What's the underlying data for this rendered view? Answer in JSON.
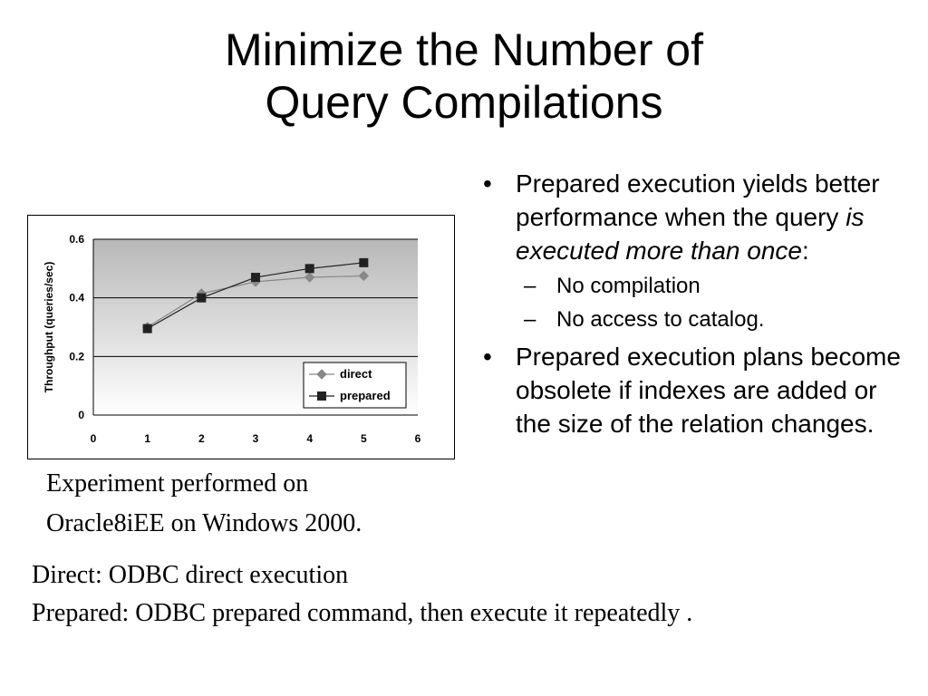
{
  "slide": {
    "title_line1": "Minimize the Number of",
    "title_line2": "Query Compilations"
  },
  "bullets": [
    {
      "parts": [
        "Prepared execution yields better performance when the query ",
        "is executed more than once",
        ":"
      ],
      "sub": [
        "No compilation",
        "No access to catalog."
      ]
    },
    {
      "parts": [
        "Prepared execution plans become obsolete if indexes are added or the size of the relation changes.",
        "",
        ""
      ],
      "sub": []
    }
  ],
  "caption": {
    "line1": "Experiment performed on",
    "line2": "Oracle8iEE on Windows 2000."
  },
  "footer": {
    "line1": "Direct: ODBC direct execution",
    "line2": "Prepared: ODBC prepared command, then execute  it repeatedly ."
  },
  "chart_data": {
    "type": "line",
    "title": "",
    "xlabel": "",
    "ylabel": "Throughput (queries/sec)",
    "xlim": [
      0,
      6
    ],
    "ylim": [
      0,
      0.6
    ],
    "x_ticks": [
      "0",
      "1",
      "2",
      "3",
      "4",
      "5",
      "6"
    ],
    "y_ticks": [
      "0",
      "0.2",
      "0.4",
      "0.6"
    ],
    "grid": true,
    "legend_position": "bottom-right",
    "series": [
      {
        "name": "direct",
        "marker": "diamond",
        "color": "#888888",
        "x": [
          1,
          2,
          3,
          4,
          5
        ],
        "y": [
          0.3,
          0.415,
          0.455,
          0.47,
          0.475
        ]
      },
      {
        "name": "prepared",
        "marker": "square",
        "color": "#222222",
        "x": [
          1,
          2,
          3,
          4,
          5
        ],
        "y": [
          0.295,
          0.4,
          0.47,
          0.5,
          0.52
        ]
      }
    ]
  }
}
